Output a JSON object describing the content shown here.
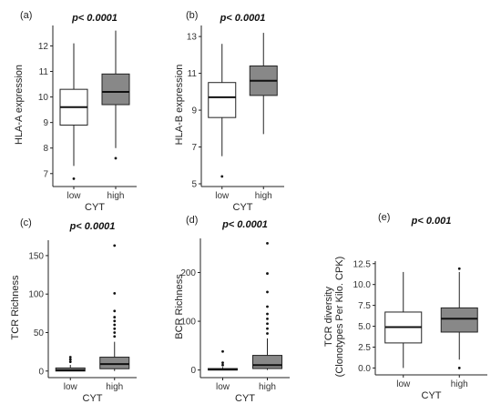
{
  "chart_data": [
    {
      "type": "box",
      "panel_label": "(a)",
      "title": "p< 0.0001",
      "xlabel": "CYT",
      "ylabel": "HLA-A expression",
      "categories": [
        "low",
        "high"
      ],
      "yticks": [
        7,
        8,
        9,
        10,
        11,
        12
      ],
      "ylim": [
        6.6,
        12.8
      ],
      "boxes": [
        {
          "category": "low",
          "fill": "#ffffff",
          "whisker_low": 7.3,
          "q1": 8.9,
          "median": 9.6,
          "q3": 10.3,
          "whisker_high": 12.1,
          "outliers": [
            6.8
          ]
        },
        {
          "category": "high",
          "fill": "#888888",
          "whisker_low": 8.0,
          "q1": 9.7,
          "median": 10.2,
          "q3": 10.9,
          "whisker_high": 12.6,
          "outliers": [
            7.6
          ]
        }
      ]
    },
    {
      "type": "box",
      "panel_label": "(b)",
      "title": "p< 0.0001",
      "xlabel": "CYT",
      "ylabel": "HLA-B expression",
      "categories": [
        "low",
        "high"
      ],
      "yticks": [
        5,
        7,
        9,
        11,
        13
      ],
      "ylim": [
        5.0,
        13.6
      ],
      "boxes": [
        {
          "category": "low",
          "fill": "#ffffff",
          "whisker_low": 6.5,
          "q1": 8.6,
          "median": 9.7,
          "q3": 10.5,
          "whisker_high": 12.6,
          "outliers": [
            5.4
          ]
        },
        {
          "category": "high",
          "fill": "#888888",
          "whisker_low": 7.7,
          "q1": 9.8,
          "median": 10.6,
          "q3": 11.4,
          "whisker_high": 13.2,
          "outliers": []
        }
      ]
    },
    {
      "type": "box",
      "panel_label": "(c)",
      "title": "p< 0.0001",
      "xlabel": "CYT",
      "ylabel": "TCR Richness",
      "categories": [
        "low",
        "high"
      ],
      "yticks": [
        0,
        50,
        100,
        150
      ],
      "ylim": [
        -5,
        170
      ],
      "boxes": [
        {
          "category": "low",
          "fill": "#888888",
          "whisker_low": 0,
          "q1": 0,
          "median": 1,
          "q3": 4,
          "whisker_high": 8,
          "outliers": [
            12,
            15,
            18
          ]
        },
        {
          "category": "high",
          "fill": "#888888",
          "whisker_low": 0,
          "q1": 3,
          "median": 9,
          "q3": 18,
          "whisker_high": 38,
          "outliers": [
            45,
            50,
            55,
            60,
            65,
            70,
            78,
            101,
            163
          ]
        }
      ]
    },
    {
      "type": "box",
      "panel_label": "(d)",
      "title": "p< 0.0001",
      "xlabel": "CYT",
      "ylabel": "BCR Richness",
      "categories": [
        "low",
        "high"
      ],
      "yticks": [
        0,
        100,
        200
      ],
      "ylim": [
        -10,
        270
      ],
      "boxes": [
        {
          "category": "low",
          "fill": "#888888",
          "whisker_low": 0,
          "q1": 0,
          "median": 1,
          "q3": 3,
          "whisker_high": 6,
          "outliers": [
            10,
            15,
            38
          ]
        },
        {
          "category": "high",
          "fill": "#888888",
          "whisker_low": 0,
          "q1": 3,
          "median": 10,
          "q3": 30,
          "whisker_high": 65,
          "outliers": [
            75,
            85,
            95,
            105,
            115,
            130,
            160,
            198,
            260
          ]
        }
      ]
    },
    {
      "type": "box",
      "panel_label": "(e)",
      "title": "p< 0.001",
      "xlabel": "CYT",
      "ylabel": "TCR diversity\n(Clonotypes Per Kilo. CPK)",
      "ylabel_lines": [
        "TCR diversity",
        "(Clonotypes Per Kilo. CPK)"
      ],
      "categories": [
        "low",
        "high"
      ],
      "yticks": [
        0.0,
        2.5,
        5.0,
        7.5,
        10.0,
        12.5
      ],
      "ytick_labels": [
        "0.0",
        "2.5",
        "5.0",
        "7.5",
        "10.0",
        "12.5"
      ],
      "ylim": [
        -0.5,
        12.8
      ],
      "boxes": [
        {
          "category": "low",
          "fill": "#ffffff",
          "whisker_low": 0.0,
          "q1": 3.0,
          "median": 4.9,
          "q3": 6.7,
          "whisker_high": 11.5,
          "outliers": []
        },
        {
          "category": "high",
          "fill": "#888888",
          "whisker_low": 1.0,
          "q1": 4.3,
          "median": 5.9,
          "q3": 7.2,
          "whisker_high": 11.5,
          "outliers": [
            0.0,
            11.9
          ]
        }
      ]
    }
  ]
}
